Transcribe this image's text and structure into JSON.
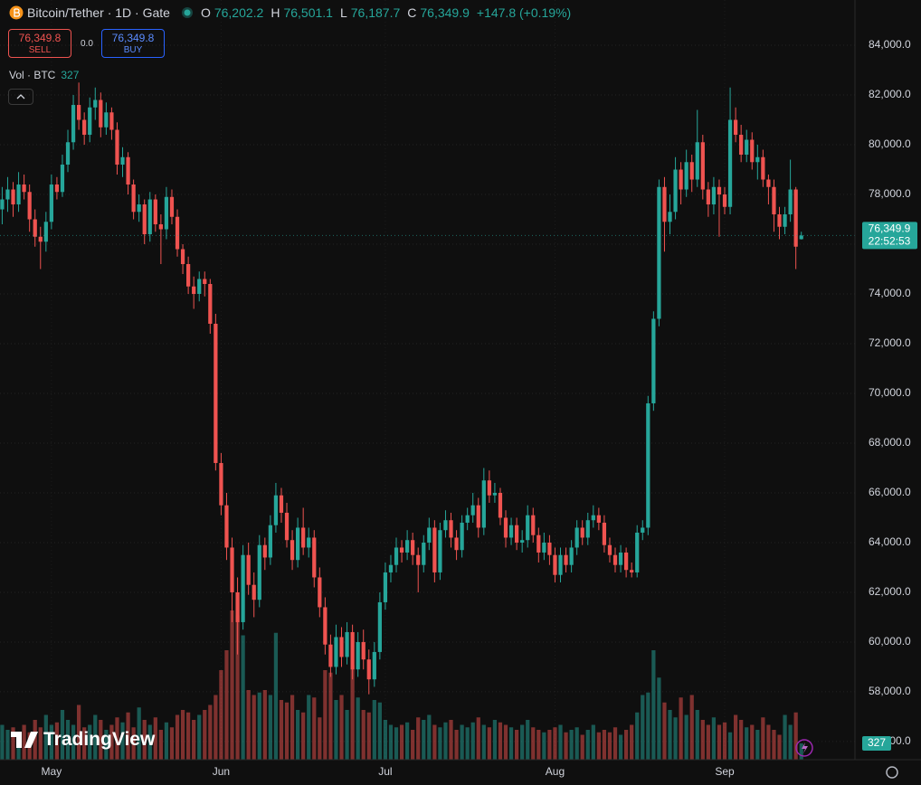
{
  "header": {
    "symbol": "Bitcoin/Tether · 1D · Gate",
    "open_label": "O",
    "open": "76,202.2",
    "high_label": "H",
    "high": "76,501.1",
    "low_label": "L",
    "low": "76,187.7",
    "close_label": "C",
    "close": "76,349.9",
    "change": "+147.8 (+0.19%)"
  },
  "trade": {
    "sell_price": "76,349.8",
    "sell_label": "SELL",
    "spread": "0.0",
    "buy_price": "76,349.8",
    "buy_label": "BUY"
  },
  "volume_legend": {
    "label": "Vol · BTC",
    "value": "327"
  },
  "price_tag": {
    "price": "76,349.9",
    "countdown": "22:52:53"
  },
  "volume_tag": "327",
  "logo": "TradingView",
  "chart_data": {
    "type": "candlestick",
    "up_color": "#26a69a",
    "down_color": "#ef5350",
    "xlim": [
      -0.4,
      155.8
    ],
    "xticks": [
      {
        "value": 9,
        "label": "May"
      },
      {
        "value": 40,
        "label": "Jun"
      },
      {
        "value": 70,
        "label": "Jul"
      },
      {
        "value": 101,
        "label": "Aug"
      },
      {
        "value": 132,
        "label": "Sep"
      }
    ],
    "ylim": [
      55270,
      85820
    ],
    "yticks": [
      {
        "value": 56000,
        "label": "56,000.0"
      },
      {
        "value": 58000,
        "label": "58,000.0"
      },
      {
        "value": 60000,
        "label": "60,000.0"
      },
      {
        "value": 62000,
        "label": "62,000.0"
      },
      {
        "value": 64000,
        "label": "64,000.0"
      },
      {
        "value": 66000,
        "label": "66,000.0"
      },
      {
        "value": 68000,
        "label": "68,000.0"
      },
      {
        "value": 70000,
        "label": "70,000.0"
      },
      {
        "value": 72000,
        "label": "72,000.0"
      },
      {
        "value": 74000,
        "label": "74,000.0"
      },
      {
        "value": 76000,
        "label": "76,000.0"
      },
      {
        "value": 78000,
        "label": "78,000.0"
      },
      {
        "value": 80000,
        "label": "80,000.0"
      },
      {
        "value": 82000,
        "label": "82,000.0"
      },
      {
        "value": 84000,
        "label": "84,000.0"
      }
    ],
    "grid": true,
    "volume_lim": [
      0,
      6000
    ],
    "candles": [
      [
        77400,
        78300,
        76800,
        77800
      ],
      [
        77800,
        78700,
        77300,
        78200
      ],
      [
        78200,
        78500,
        77100,
        77600
      ],
      [
        77600,
        78900,
        77300,
        78400
      ],
      [
        78400,
        78800,
        77800,
        78100
      ],
      [
        78100,
        78400,
        76500,
        77000
      ],
      [
        77000,
        77400,
        75900,
        76300
      ],
      [
        76300,
        76700,
        75000,
        76100
      ],
      [
        76100,
        77300,
        75700,
        76900
      ],
      [
        76900,
        78800,
        76600,
        78400
      ],
      [
        78400,
        78700,
        77800,
        78100
      ],
      [
        78100,
        79600,
        77900,
        79200
      ],
      [
        79200,
        80600,
        78900,
        80100
      ],
      [
        80100,
        82000,
        79800,
        81600
      ],
      [
        81600,
        82500,
        80600,
        81000
      ],
      [
        81000,
        81300,
        80000,
        80400
      ],
      [
        80400,
        81900,
        80100,
        81500
      ],
      [
        81500,
        82300,
        81000,
        81800
      ],
      [
        81800,
        82100,
        80300,
        80700
      ],
      [
        80700,
        81700,
        80400,
        81300
      ],
      [
        81300,
        81500,
        80200,
        80600
      ],
      [
        80600,
        80900,
        78800,
        79200
      ],
      [
        79200,
        79900,
        78700,
        79500
      ],
      [
        79500,
        79700,
        78000,
        78400
      ],
      [
        78400,
        78600,
        77000,
        77300
      ],
      [
        77300,
        78000,
        76900,
        77600
      ],
      [
        77600,
        77800,
        76000,
        76400
      ],
      [
        76400,
        78100,
        76100,
        77800
      ],
      [
        77800,
        78000,
        76500,
        76800
      ],
      [
        76800,
        77200,
        75200,
        76600
      ],
      [
        76600,
        78300,
        76200,
        77900
      ],
      [
        77900,
        78200,
        76800,
        77100
      ],
      [
        77100,
        77400,
        75500,
        75800
      ],
      [
        75800,
        76000,
        74800,
        75200
      ],
      [
        75200,
        75500,
        74000,
        74300
      ],
      [
        74300,
        74700,
        73400,
        74000
      ],
      [
        74000,
        74900,
        73700,
        74600
      ],
      [
        74600,
        74900,
        73900,
        74400
      ],
      [
        74400,
        74600,
        72400,
        72800
      ],
      [
        72800,
        73200,
        66900,
        67200
      ],
      [
        67200,
        67600,
        65100,
        65500
      ],
      [
        65500,
        66000,
        63300,
        63800
      ],
      [
        63800,
        64200,
        60800,
        62000
      ],
      [
        62000,
        62600,
        59500,
        60800
      ],
      [
        60800,
        63900,
        60500,
        63500
      ],
      [
        63500,
        64000,
        61900,
        62300
      ],
      [
        62300,
        62800,
        61000,
        61700
      ],
      [
        61700,
        64300,
        61400,
        63900
      ],
      [
        63900,
        64200,
        62900,
        63400
      ],
      [
        63400,
        65100,
        63100,
        64700
      ],
      [
        64700,
        66400,
        64400,
        65900
      ],
      [
        65900,
        66200,
        64800,
        65200
      ],
      [
        65200,
        65600,
        63800,
        64100
      ],
      [
        64100,
        64500,
        62900,
        63300
      ],
      [
        63300,
        65000,
        63000,
        64600
      ],
      [
        64600,
        65400,
        63500,
        63800
      ],
      [
        63800,
        64600,
        63400,
        64200
      ],
      [
        64200,
        64500,
        62200,
        62600
      ],
      [
        62600,
        63000,
        61000,
        61400
      ],
      [
        61400,
        61800,
        59500,
        59900
      ],
      [
        59900,
        60300,
        58600,
        59000
      ],
      [
        59000,
        60700,
        58700,
        60200
      ],
      [
        60200,
        60600,
        59000,
        59400
      ],
      [
        59400,
        60800,
        59100,
        60400
      ],
      [
        60400,
        60700,
        58500,
        58900
      ],
      [
        58900,
        60400,
        58600,
        60000
      ],
      [
        60000,
        60500,
        58900,
        59300
      ],
      [
        59300,
        59700,
        57900,
        58500
      ],
      [
        58500,
        60000,
        58200,
        59600
      ],
      [
        59600,
        62000,
        59300,
        61600
      ],
      [
        61600,
        63200,
        61300,
        62800
      ],
      [
        62800,
        63500,
        62400,
        63100
      ],
      [
        63100,
        64200,
        62800,
        63800
      ],
      [
        63800,
        64100,
        63200,
        63600
      ],
      [
        63600,
        64500,
        63300,
        64100
      ],
      [
        64100,
        64400,
        63100,
        63500
      ],
      [
        63500,
        63800,
        62000,
        63100
      ],
      [
        63100,
        64300,
        62800,
        64000
      ],
      [
        64000,
        65000,
        63700,
        64600
      ],
      [
        64600,
        64900,
        62400,
        62800
      ],
      [
        62800,
        64800,
        62500,
        64500
      ],
      [
        64500,
        65300,
        64200,
        64900
      ],
      [
        64900,
        65200,
        63800,
        64200
      ],
      [
        64200,
        64500,
        63300,
        63700
      ],
      [
        63700,
        65100,
        63400,
        64800
      ],
      [
        64800,
        65400,
        64500,
        65100
      ],
      [
        65100,
        66000,
        64800,
        65500
      ],
      [
        65500,
        65800,
        64200,
        64600
      ],
      [
        64600,
        67000,
        64300,
        66500
      ],
      [
        66500,
        66900,
        65600,
        65900
      ],
      [
        65900,
        66400,
        65600,
        66000
      ],
      [
        66000,
        66200,
        64700,
        65000
      ],
      [
        65000,
        65300,
        63800,
        64200
      ],
      [
        64200,
        65000,
        63900,
        64700
      ],
      [
        64700,
        65000,
        63700,
        64000
      ],
      [
        64000,
        64500,
        63600,
        64100
      ],
      [
        64100,
        65500,
        63800,
        65100
      ],
      [
        65100,
        65400,
        64000,
        64300
      ],
      [
        64300,
        64600,
        63200,
        63600
      ],
      [
        63600,
        64400,
        63300,
        64000
      ],
      [
        64000,
        64300,
        63100,
        63500
      ],
      [
        63500,
        63800,
        62400,
        62700
      ],
      [
        62700,
        63800,
        62400,
        63500
      ],
      [
        63500,
        63800,
        62800,
        63100
      ],
      [
        63100,
        64100,
        62800,
        63800
      ],
      [
        63800,
        64900,
        63500,
        64600
      ],
      [
        64600,
        64900,
        63900,
        64200
      ],
      [
        64200,
        65200,
        63900,
        64900
      ],
      [
        64900,
        65500,
        64600,
        65100
      ],
      [
        65100,
        65400,
        64500,
        64800
      ],
      [
        64800,
        65100,
        63600,
        63900
      ],
      [
        63900,
        64200,
        63200,
        63500
      ],
      [
        63500,
        63800,
        62800,
        63100
      ],
      [
        63100,
        63900,
        62800,
        63600
      ],
      [
        63600,
        63800,
        62600,
        62900
      ],
      [
        62900,
        63200,
        62600,
        62800
      ],
      [
        62800,
        64700,
        62600,
        64400
      ],
      [
        64400,
        64900,
        64100,
        64600
      ],
      [
        64600,
        69900,
        64300,
        69600
      ],
      [
        69600,
        73300,
        69300,
        73000
      ],
      [
        73000,
        78600,
        72700,
        78300
      ],
      [
        78300,
        78700,
        75700,
        76900
      ],
      [
        76900,
        78000,
        76400,
        77300
      ],
      [
        77300,
        79500,
        77000,
        79000
      ],
      [
        79000,
        79300,
        77600,
        78200
      ],
      [
        78200,
        79800,
        77900,
        79300
      ],
      [
        79300,
        79600,
        78100,
        78600
      ],
      [
        78600,
        81400,
        78300,
        80100
      ],
      [
        80100,
        80400,
        77800,
        78200
      ],
      [
        78200,
        78500,
        77100,
        77600
      ],
      [
        77600,
        78700,
        77200,
        78300
      ],
      [
        78300,
        78600,
        76300,
        78000
      ],
      [
        78000,
        78300,
        77200,
        77500
      ],
      [
        77500,
        82300,
        77200,
        81000
      ],
      [
        81000,
        81500,
        80100,
        80400
      ],
      [
        80400,
        80800,
        79300,
        79600
      ],
      [
        79600,
        80600,
        79300,
        80200
      ],
      [
        80200,
        80500,
        79000,
        79300
      ],
      [
        79300,
        80000,
        78600,
        79500
      ],
      [
        79500,
        79800,
        78300,
        78600
      ],
      [
        78600,
        78800,
        77600,
        78300
      ],
      [
        78300,
        78600,
        76500,
        77200
      ],
      [
        77200,
        77500,
        76200,
        76700
      ],
      [
        76700,
        77500,
        76400,
        77200
      ],
      [
        77200,
        79400,
        76900,
        78200
      ],
      [
        78200,
        78300,
        75000,
        75900
      ],
      [
        76202.2,
        76501.1,
        76187.7,
        76349.9
      ]
    ],
    "volume": [
      700,
      600,
      650,
      500,
      700,
      550,
      800,
      650,
      900,
      700,
      750,
      1000,
      800,
      700,
      1100,
      650,
      700,
      900,
      800,
      600,
      700,
      850,
      750,
      950,
      650,
      1050,
      800,
      700,
      850,
      600,
      750,
      650,
      900,
      1000,
      950,
      800,
      900,
      1000,
      1100,
      1300,
      1800,
      2200,
      3000,
      2900,
      2500,
      1400,
      1300,
      1350,
      1400,
      1300,
      2550,
      1200,
      1150,
      1300,
      1000,
      950,
      1300,
      1250,
      850,
      1800,
      1750,
      1200,
      1300,
      1000,
      1900,
      1250,
      1000,
      950,
      1200,
      1150,
      800,
      700,
      650,
      700,
      750,
      600,
      850,
      800,
      900,
      700,
      650,
      750,
      800,
      600,
      700,
      650,
      750,
      850,
      700,
      650,
      800,
      750,
      700,
      650,
      600,
      700,
      800,
      650,
      600,
      550,
      600,
      650,
      700,
      550,
      600,
      650,
      500,
      600,
      700,
      550,
      600,
      550,
      650,
      500,
      600,
      700,
      950,
      1300,
      1350,
      2200,
      1650,
      1150,
      1000,
      850,
      1250,
      900,
      1300,
      1000,
      800,
      700,
      850,
      700,
      750,
      550,
      900,
      800,
      650,
      700,
      600,
      850,
      700,
      600,
      500,
      900,
      700,
      950,
      327
    ]
  }
}
